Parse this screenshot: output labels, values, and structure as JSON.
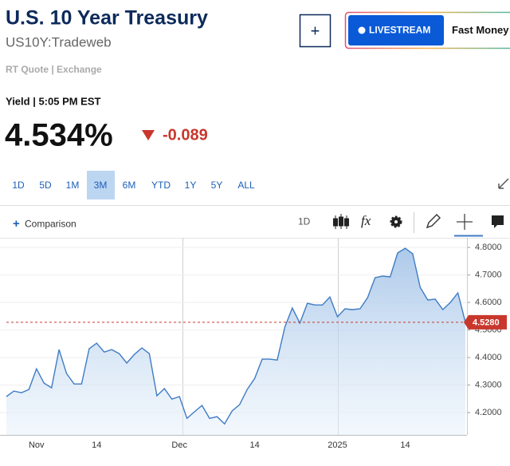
{
  "header": {
    "title": "U.S. 10 Year Treasury",
    "symbol": "US10Y:Tradeweb",
    "quote_source": "RT Quote | Exchange"
  },
  "actions": {
    "add": "+",
    "livestream": "LIVESTREAM",
    "show": "Fast Money"
  },
  "quote": {
    "time_label": "Yield | 5:05 PM EST",
    "last": "4.534%",
    "change": "-0.089"
  },
  "ranges": {
    "items": [
      "1D",
      "5D",
      "1M",
      "3M",
      "6M",
      "YTD",
      "1Y",
      "5Y",
      "ALL"
    ],
    "active": 3
  },
  "toolbar": {
    "comparison_icon": "+",
    "comparison": "Comparison",
    "interval": "1D",
    "fx": "fx"
  },
  "chart_data": {
    "type": "area",
    "categories": [
      null,
      null,
      null,
      null,
      "Nov",
      null,
      null,
      null,
      null,
      null,
      null,
      null,
      "14",
      null,
      null,
      null,
      null,
      null,
      null,
      null,
      null,
      null,
      null,
      "Dec",
      null,
      null,
      null,
      null,
      null,
      null,
      null,
      null,
      null,
      "14",
      null,
      null,
      null,
      null,
      null,
      null,
      null,
      null,
      null,
      null,
      "2025",
      null,
      null,
      null,
      null,
      null,
      null,
      null,
      null,
      "14",
      null,
      null,
      null,
      null,
      null,
      null,
      null,
      null
    ],
    "values": [
      4.258,
      4.278,
      4.272,
      4.284,
      4.359,
      4.307,
      4.29,
      4.429,
      4.342,
      4.304,
      4.304,
      4.432,
      4.452,
      4.42,
      4.429,
      4.414,
      4.38,
      4.411,
      4.435,
      4.414,
      4.261,
      4.287,
      4.249,
      4.258,
      4.179,
      4.203,
      4.226,
      4.179,
      4.185,
      4.159,
      4.206,
      4.229,
      4.284,
      4.324,
      4.394,
      4.394,
      4.391,
      4.51,
      4.58,
      4.525,
      4.597,
      4.591,
      4.591,
      4.62,
      4.548,
      4.577,
      4.574,
      4.577,
      4.617,
      4.69,
      4.696,
      4.693,
      4.78,
      4.797,
      4.777,
      4.655,
      4.609,
      4.612,
      4.574,
      4.6,
      4.635,
      4.528
    ],
    "color": "#3f7cc4",
    "ylim": [
      4.119,
      4.835
    ],
    "yticks": [
      {
        "value": 4.2,
        "label": "4.2000"
      },
      {
        "value": 4.3,
        "label": "4.3000"
      },
      {
        "value": 4.4,
        "label": "4.4000"
      },
      {
        "value": 4.5,
        "label": "4.5000"
      },
      {
        "value": 4.6,
        "label": "4.6000"
      },
      {
        "value": 4.7,
        "label": "4.7000"
      },
      {
        "value": 4.8,
        "label": "4.8000"
      }
    ],
    "grid": true,
    "last": {
      "value": 4.528,
      "label": "4.5280",
      "color": "#c9372c"
    }
  }
}
